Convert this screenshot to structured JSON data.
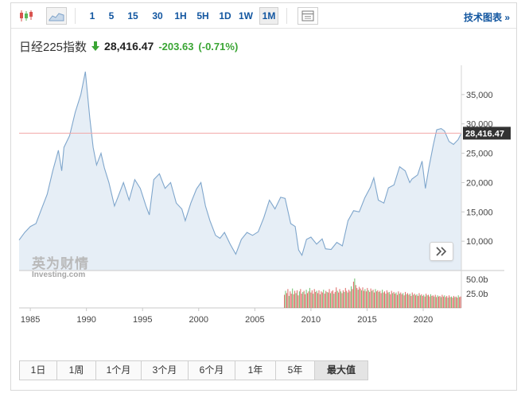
{
  "toolbar": {
    "intervals": [
      "1",
      "5",
      "15",
      "30",
      "1H",
      "5H",
      "1D",
      "1W",
      "1M"
    ],
    "active_interval": "1M",
    "right_link": "技术图表 »"
  },
  "quote": {
    "name": "日经225指数",
    "price": "28,416.47",
    "change": "-203.63",
    "change_pct": "(-0.71%)",
    "direction": "down",
    "color_down": "#3aa534"
  },
  "watermark": {
    "cn": "英为财情",
    "en": "Investing.com"
  },
  "ranges": [
    "1日",
    "1周",
    "1个月",
    "3个月",
    "6个月",
    "1年",
    "5年",
    "最大值"
  ],
  "active_range": "最大值",
  "chart_data": [
    {
      "type": "area",
      "x_ticks": [
        "1985",
        "1990",
        "1995",
        "2000",
        "2005",
        "2010",
        "2015",
        "2020"
      ],
      "y_ticks": [
        "10,000",
        "15,000",
        "20,000",
        "25,000",
        "30,000",
        "35,000"
      ],
      "ylim": [
        5000,
        40000
      ],
      "last_price_label": "28,416.47",
      "last_price": 28416.47,
      "grid": false,
      "series": [
        {
          "x": [
            1984.0,
            1984.5,
            1985.0,
            1985.5,
            1986.0,
            1986.5,
            1987.0,
            1987.5,
            1987.8,
            1988.0,
            1988.5,
            1989.0,
            1989.5,
            1989.9,
            1990.3,
            1990.6,
            1990.9,
            1991.3,
            1991.6,
            1992.0,
            1992.5,
            1992.8,
            1993.3,
            1993.8,
            1994.3,
            1994.8,
            1995.3,
            1995.6,
            1996.0,
            1996.5,
            1997.0,
            1997.5,
            1998.0,
            1998.5,
            1998.8,
            1999.3,
            1999.8,
            2000.2,
            2000.6,
            2001.0,
            2001.5,
            2001.9,
            2002.3,
            2002.8,
            2003.3,
            2003.8,
            2004.3,
            2004.8,
            2005.3,
            2005.8,
            2006.3,
            2006.8,
            2007.3,
            2007.7,
            2008.2,
            2008.6,
            2008.9,
            2009.2,
            2009.6,
            2010.0,
            2010.5,
            2011.0,
            2011.3,
            2011.8,
            2012.3,
            2012.8,
            2013.3,
            2013.8,
            2014.3,
            2014.8,
            2015.3,
            2015.6,
            2016.0,
            2016.5,
            2016.9,
            2017.4,
            2017.9,
            2018.4,
            2018.8,
            2019.0,
            2019.5,
            2019.9,
            2020.2,
            2020.5,
            2020.9,
            2021.2,
            2021.6,
            2021.9,
            2022.3,
            2022.7,
            2023.1,
            2023.4
          ],
          "values": [
            10200,
            11500,
            12500,
            13000,
            15500,
            18000,
            22000,
            25500,
            22000,
            26000,
            28000,
            32000,
            35000,
            38900,
            31000,
            26000,
            23000,
            25000,
            22500,
            20000,
            16000,
            17500,
            20000,
            17000,
            20500,
            19000,
            16000,
            14500,
            20500,
            21500,
            19000,
            20000,
            16500,
            15500,
            13500,
            16500,
            18900,
            20000,
            16000,
            13500,
            11000,
            10500,
            11500,
            9500,
            7800,
            10300,
            11500,
            11000,
            11600,
            14000,
            17000,
            15500,
            17500,
            17300,
            13000,
            12500,
            8500,
            7600,
            10300,
            10700,
            9500,
            10400,
            8700,
            8600,
            9800,
            9200,
            13500,
            15200,
            15000,
            17400,
            19200,
            20800,
            17000,
            16500,
            19100,
            19600,
            22700,
            22000,
            20000,
            20600,
            21300,
            23650,
            19000,
            22500,
            26400,
            29000,
            29200,
            28800,
            27000,
            26500,
            27300,
            28416.47
          ]
        }
      ]
    },
    {
      "type": "bar",
      "y_ticks": [
        "25.0b",
        "50.0b"
      ],
      "ylim": [
        0,
        80
      ],
      "x_start": 2007.6,
      "x_end": 2023.4,
      "colors": {
        "up": "#5cb85c",
        "down": "#d9534f"
      },
      "values": [
        23,
        30,
        26,
        33,
        21,
        29,
        25,
        34,
        24,
        30,
        26,
        31,
        22,
        29,
        33,
        25,
        28,
        30,
        24,
        32,
        26,
        29,
        35,
        27,
        31,
        25,
        33,
        28,
        30,
        26,
        31,
        24,
        29,
        27,
        32,
        25,
        30,
        28,
        27,
        33,
        26,
        29,
        31,
        25,
        28,
        36,
        30,
        27,
        33,
        29,
        26,
        31,
        28,
        35,
        30,
        27,
        32,
        29,
        38,
        33,
        46,
        54,
        40,
        35,
        32,
        37,
        34,
        31,
        36,
        30,
        33,
        29,
        35,
        31,
        28,
        34,
        30,
        32,
        27,
        33,
        29,
        31,
        28,
        30,
        26,
        32,
        27,
        29,
        25,
        31,
        27,
        28,
        24,
        30,
        26,
        28,
        25,
        27,
        23,
        29,
        25,
        27,
        24,
        26,
        22,
        28,
        24,
        26,
        23,
        25,
        21,
        27,
        23,
        25,
        22,
        24,
        21,
        26,
        22,
        24,
        21,
        23,
        20,
        25,
        22,
        23,
        20,
        24,
        21,
        22,
        20,
        23,
        19,
        22,
        20,
        21,
        19,
        23,
        20,
        22,
        19,
        21,
        18,
        22,
        19,
        20,
        18,
        21,
        19,
        20,
        18,
        22,
        19,
        20
      ]
    }
  ]
}
